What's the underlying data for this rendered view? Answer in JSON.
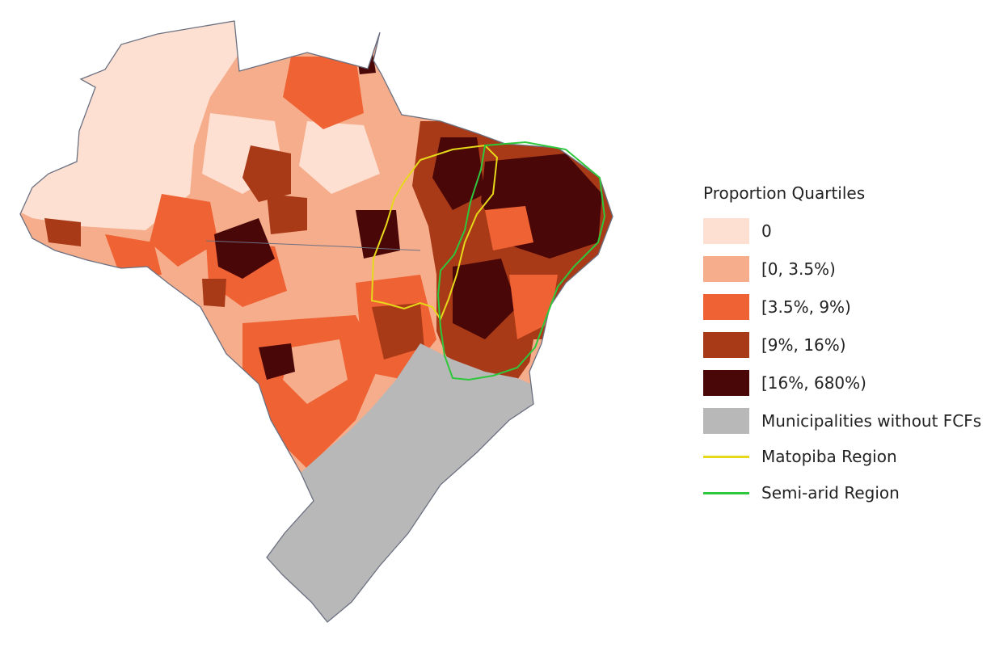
{
  "legend": {
    "title": "Proportion Quartiles",
    "items": [
      {
        "label": "0",
        "color": "#fde0d2"
      },
      {
        "label": "[0, 3.5%)",
        "color": "#f6ad8c"
      },
      {
        "label": "[3.5%, 9%)",
        "color": "#ef6234"
      },
      {
        "label": "[9%, 16%)",
        "color": "#a93a17"
      },
      {
        "label": "[16%, 680%)",
        "color": "#4a0708"
      },
      {
        "label": "Municipalities without FCFs",
        "color": "#b8b8b8"
      }
    ],
    "lines": [
      {
        "label": "Matopiba Region",
        "color": "#e6d919"
      },
      {
        "label": "Semi-arid Region",
        "color": "#2ec73c"
      }
    ]
  }
}
